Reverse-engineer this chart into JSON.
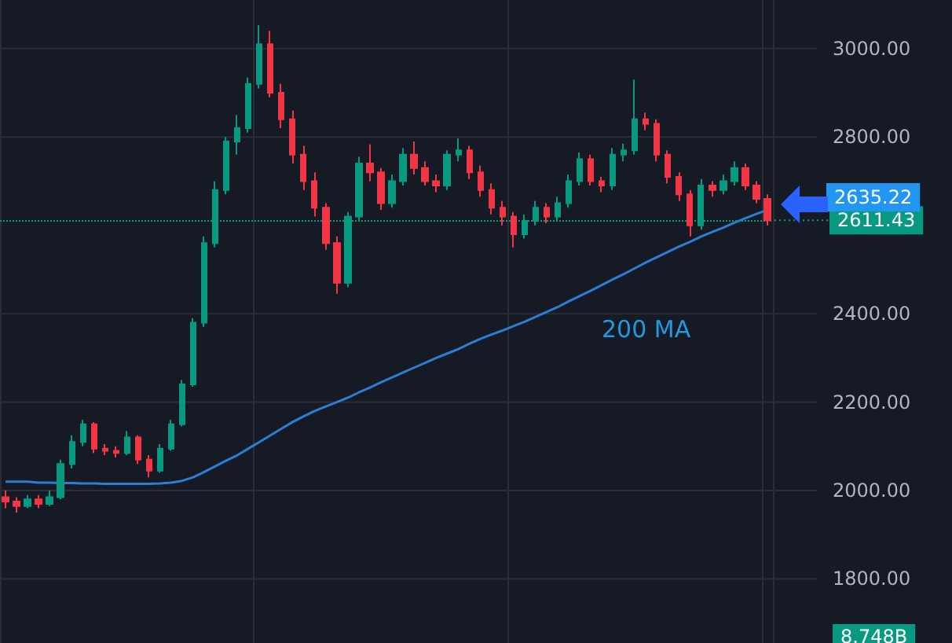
{
  "chart_data": {
    "type": "candlestick",
    "categories": [
      null,
      null,
      null,
      null,
      null,
      null,
      null,
      null,
      null,
      null,
      null,
      null,
      null,
      null,
      null,
      null,
      null,
      null,
      null,
      null,
      null,
      null,
      null,
      null,
      null,
      null,
      null,
      null,
      null,
      null,
      null,
      null,
      null,
      null,
      null,
      null,
      null,
      null,
      null,
      null,
      null,
      null,
      null,
      null,
      null,
      null,
      null,
      null,
      null,
      null,
      null,
      null,
      null,
      null,
      null,
      null,
      null,
      null,
      null,
      null,
      null,
      null,
      null,
      null,
      null,
      null,
      null,
      null,
      null,
      null
    ],
    "ohlc": [
      [
        1985,
        2000,
        1960,
        1975
      ],
      [
        1975,
        1985,
        1950,
        1965
      ],
      [
        1965,
        1990,
        1960,
        1980
      ],
      [
        1980,
        1990,
        1960,
        1970
      ],
      [
        1970,
        2000,
        1965,
        1985
      ],
      [
        1985,
        2070,
        1980,
        2060
      ],
      [
        2060,
        2125,
        2050,
        2110
      ],
      [
        2110,
        2160,
        2100,
        2150
      ],
      [
        2150,
        2155,
        2085,
        2095
      ],
      [
        2095,
        2105,
        2080,
        2090
      ],
      [
        2090,
        2100,
        2075,
        2085
      ],
      [
        2085,
        2135,
        2080,
        2120
      ],
      [
        2120,
        2125,
        2060,
        2070
      ],
      [
        2070,
        2080,
        2030,
        2045
      ],
      [
        2045,
        2105,
        2040,
        2095
      ],
      [
        2095,
        2160,
        2090,
        2150
      ],
      [
        2150,
        2250,
        2145,
        2240
      ],
      [
        2240,
        2390,
        2235,
        2380
      ],
      [
        2380,
        2575,
        2370,
        2560
      ],
      [
        2560,
        2700,
        2550,
        2680
      ],
      [
        2680,
        2800,
        2670,
        2790
      ],
      [
        2790,
        2850,
        2760,
        2820
      ],
      [
        2820,
        2935,
        2810,
        2920
      ],
      [
        2920,
        3053,
        2910,
        3010
      ],
      [
        3010,
        3040,
        2890,
        2900
      ],
      [
        2900,
        2920,
        2820,
        2840
      ],
      [
        2840,
        2860,
        2740,
        2760
      ],
      [
        2760,
        2780,
        2680,
        2700
      ],
      [
        2700,
        2720,
        2620,
        2640
      ],
      [
        2640,
        2650,
        2545,
        2560
      ],
      [
        2560,
        2575,
        2445,
        2470
      ],
      [
        2470,
        2630,
        2460,
        2620
      ],
      [
        2620,
        2755,
        2610,
        2740
      ],
      [
        2740,
        2783,
        2700,
        2720
      ],
      [
        2720,
        2730,
        2635,
        2650
      ],
      [
        2650,
        2715,
        2640,
        2700
      ],
      [
        2700,
        2775,
        2690,
        2760
      ],
      [
        2760,
        2790,
        2715,
        2730
      ],
      [
        2730,
        2745,
        2690,
        2700
      ],
      [
        2700,
        2715,
        2675,
        2690
      ],
      [
        2690,
        2770,
        2680,
        2760
      ],
      [
        2760,
        2797,
        2745,
        2770
      ],
      [
        2770,
        2780,
        2705,
        2720
      ],
      [
        2720,
        2735,
        2665,
        2680
      ],
      [
        2680,
        2695,
        2625,
        2640
      ],
      [
        2640,
        2655,
        2600,
        2620
      ],
      [
        2620,
        2630,
        2550,
        2580
      ],
      [
        2580,
        2625,
        2570,
        2610
      ],
      [
        2610,
        2655,
        2600,
        2640
      ],
      [
        2640,
        2650,
        2605,
        2620
      ],
      [
        2620,
        2665,
        2610,
        2650
      ],
      [
        2650,
        2715,
        2640,
        2700
      ],
      [
        2700,
        2765,
        2690,
        2750
      ],
      [
        2750,
        2760,
        2690,
        2700
      ],
      [
        2700,
        2710,
        2675,
        2690
      ],
      [
        2690,
        2775,
        2680,
        2760
      ],
      [
        2760,
        2785,
        2745,
        2770
      ],
      [
        2770,
        2930,
        2760,
        2840
      ],
      [
        2840,
        2855,
        2815,
        2830
      ],
      [
        2830,
        2840,
        2745,
        2760
      ],
      [
        2760,
        2770,
        2695,
        2710
      ],
      [
        2710,
        2720,
        2655,
        2670
      ],
      [
        2670,
        2680,
        2575,
        2600
      ],
      [
        2600,
        2705,
        2590,
        2690
      ],
      [
        2690,
        2700,
        2665,
        2680
      ],
      [
        2680,
        2715,
        2670,
        2700
      ],
      [
        2700,
        2745,
        2690,
        2730
      ],
      [
        2730,
        2740,
        2680,
        2690
      ],
      [
        2690,
        2700,
        2650,
        2660
      ],
      [
        2660,
        2670,
        2600,
        2611.43
      ]
    ],
    "colors": [
      "#f23645",
      "#f23645",
      "#089981",
      "#f23645",
      "#089981",
      "#089981",
      "#089981",
      "#089981",
      "#f23645",
      "#f23645",
      "#f23645",
      "#089981",
      "#f23645",
      "#f23645",
      "#089981",
      "#089981",
      "#089981",
      "#089981",
      "#089981",
      "#089981",
      "#089981",
      "#089981",
      "#089981",
      "#089981",
      "#f23645",
      "#f23645",
      "#f23645",
      "#f23645",
      "#f23645",
      "#f23645",
      "#f23645",
      "#089981",
      "#089981",
      "#f23645",
      "#f23645",
      "#089981",
      "#089981",
      "#f23645",
      "#f23645",
      "#f23645",
      "#089981",
      "#089981",
      "#f23645",
      "#f23645",
      "#f23645",
      "#f23645",
      "#f23645",
      "#089981",
      "#089981",
      "#f23645",
      "#089981",
      "#089981",
      "#089981",
      "#f23645",
      "#f23645",
      "#089981",
      "#089981",
      "#089981",
      "#f23645",
      "#f23645",
      "#f23645",
      "#f23645",
      "#f23645",
      "#089981",
      "#f23645",
      "#089981",
      "#089981",
      "#f23645",
      "#f23645",
      "#f23645"
    ],
    "series": [
      {
        "type": "line",
        "color": "#2a7fd4",
        "values": [
          2020,
          2020,
          2020,
          2018,
          2018,
          2017,
          2017,
          2016,
          2016,
          2015,
          2015,
          2015,
          2015,
          2015,
          2016,
          2018,
          2022,
          2030,
          2042,
          2055,
          2068,
          2080,
          2095,
          2110,
          2125,
          2140,
          2155,
          2168,
          2180,
          2190,
          2200,
          2210,
          2222,
          2233,
          2245,
          2256,
          2267,
          2278,
          2289,
          2300,
          2310,
          2320,
          2332,
          2343,
          2353,
          2362,
          2372,
          2382,
          2393,
          2404,
          2415,
          2428,
          2440,
          2452,
          2465,
          2478,
          2490,
          2503,
          2516,
          2528,
          2540,
          2552,
          2563,
          2575,
          2585,
          2595,
          2606,
          2616,
          2626,
          2635
        ]
      }
    ],
    "ylim": [
      1655,
      3110
    ],
    "yticks": [
      {
        "value": 1800,
        "label": "1800.00"
      },
      {
        "value": 2000,
        "label": "2000.00"
      },
      {
        "value": 2200,
        "label": "2200.00"
      },
      {
        "value": 2400,
        "label": "2400.00"
      },
      {
        "value": 2800,
        "label": "2800.00"
      },
      {
        "value": 3000,
        "label": "3000.00"
      }
    ],
    "ref_lines": [
      {
        "axis": "y",
        "value": 2611.43,
        "label": "2611.43",
        "color": "#089981",
        "line_style": "dotted"
      }
    ],
    "annotations": [
      "200 MA",
      "2635.22",
      "8.748B"
    ],
    "grid": true
  }
}
